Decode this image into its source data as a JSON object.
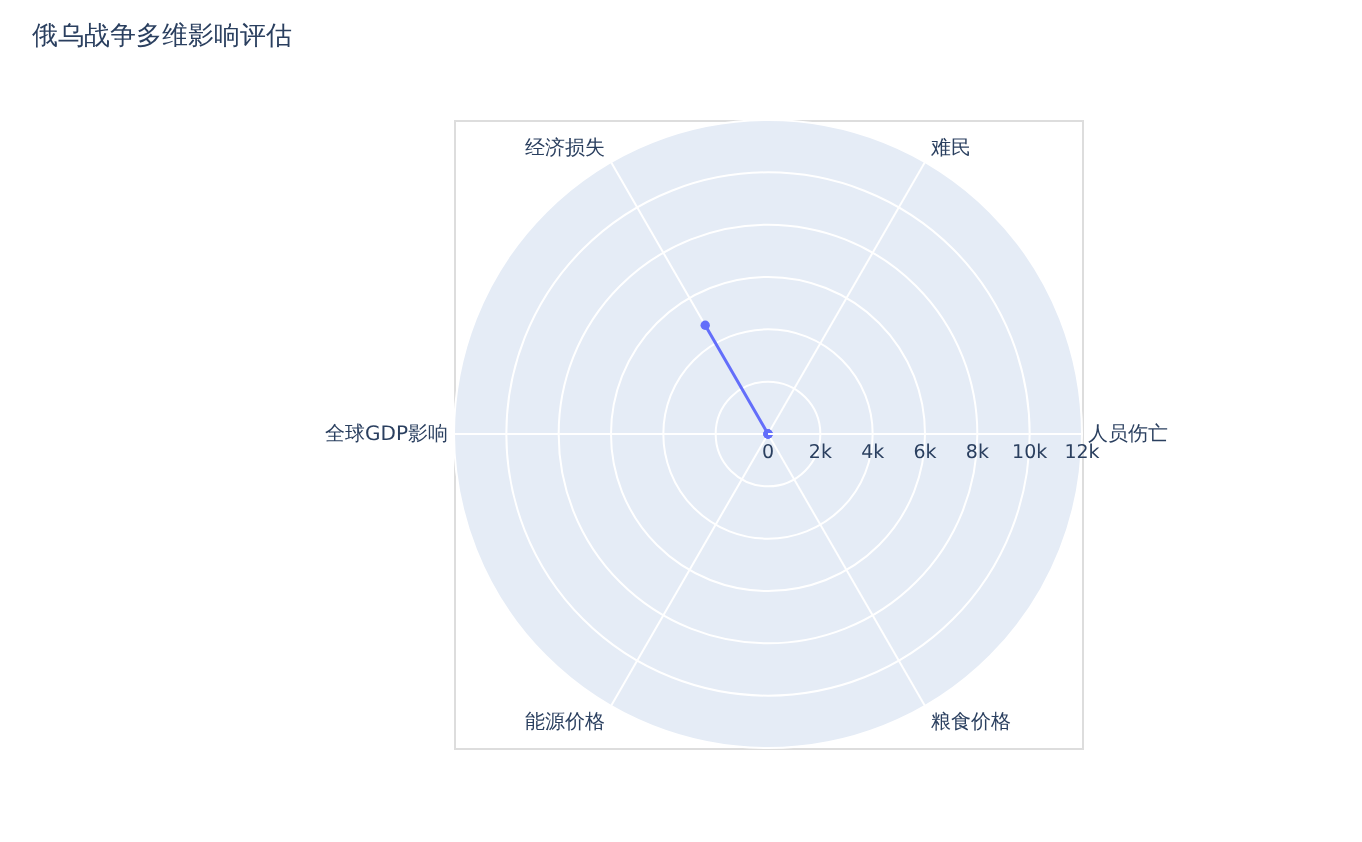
{
  "chart_data": {
    "type": "radar",
    "title": "俄乌战争多维影响评估",
    "categories": [
      "难民",
      "人员伤亡",
      "粮食价格",
      "能源价格",
      "全球GDP影响",
      "经济损失"
    ],
    "series": [
      {
        "color": "#636efa",
        "values": [
          null,
          null,
          0,
          0,
          0,
          4800
        ]
      }
    ],
    "ylim": [
      0,
      12000
    ],
    "yticks": [
      0,
      {
        "value": 2000,
        "label": "2k"
      },
      {
        "value": 4000,
        "label": "4k"
      },
      {
        "value": 6000,
        "label": "6k"
      },
      {
        "value": 8000,
        "label": "8k"
      },
      {
        "value": 10000,
        "label": "10k"
      },
      {
        "value": 12000,
        "label": "12k"
      }
    ],
    "grid": true,
    "marker": "circle"
  }
}
